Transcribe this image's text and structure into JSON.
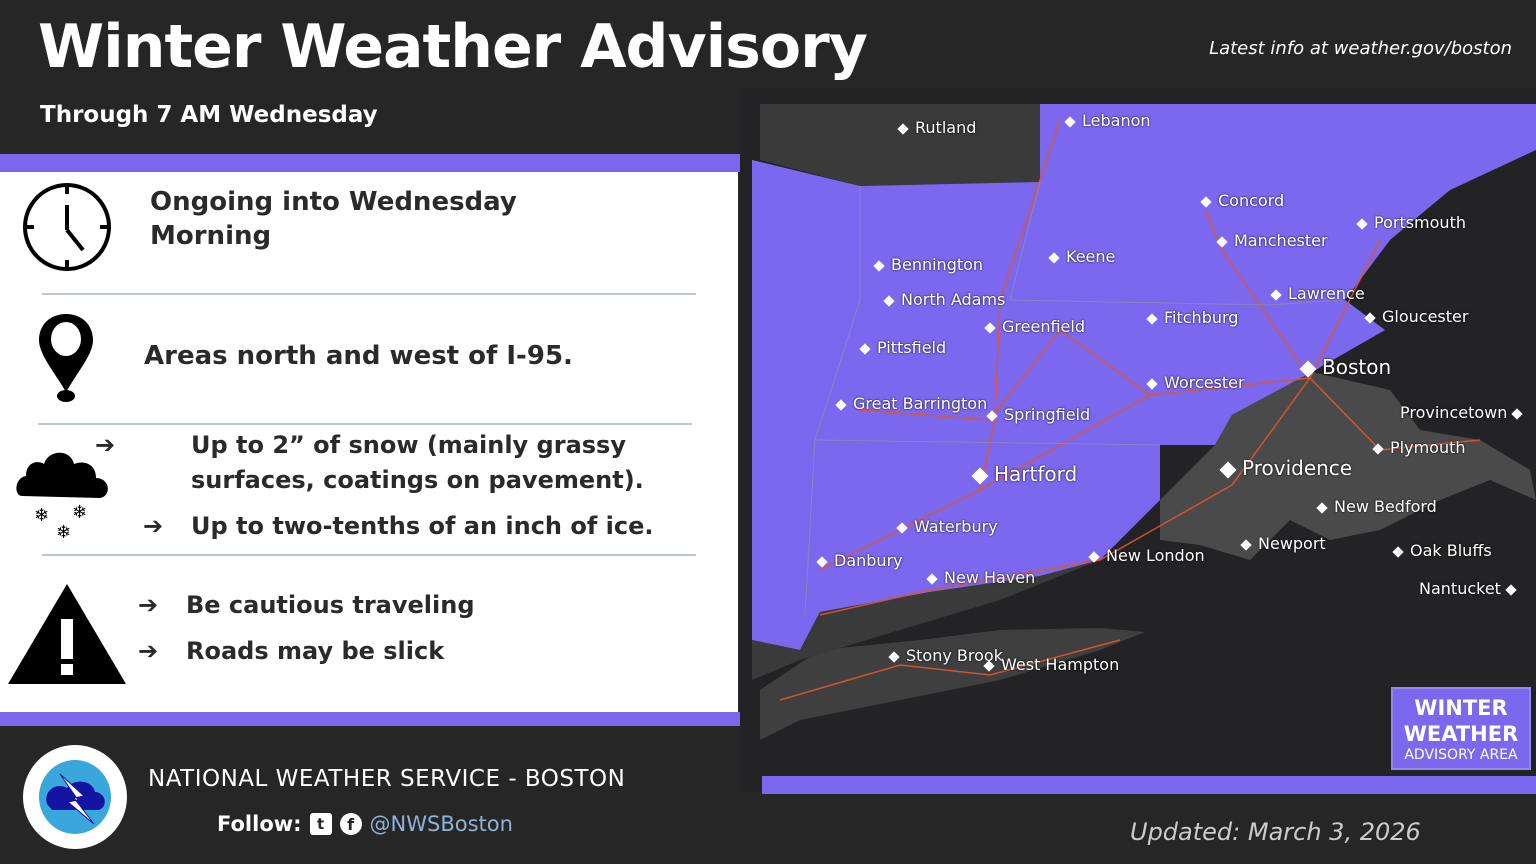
{
  "header": {
    "title": "Winter Weather Advisory",
    "subtitle": "Through 7 AM Wednesday",
    "latest_info": "Latest info at weather.gov/boston"
  },
  "rows": {
    "timing": {
      "icon": "clock-icon",
      "text": "Ongoing into Wednesday Morning"
    },
    "location": {
      "icon": "map-pin-icon",
      "text": "Areas north and west of I-95."
    },
    "impacts": {
      "icon": "snow-cloud-icon",
      "bullets": [
        "Up to 2” of snow (mainly grassy surfaces, coatings on pavement).",
        "Up to two-tenths of an inch of ice."
      ]
    },
    "actions": {
      "icon": "warning-icon",
      "bullets": [
        "Be cautious traveling",
        "Roads may be slick"
      ]
    }
  },
  "map": {
    "colors": {
      "advisory": "#7b68ee",
      "land": "#3a3a3a",
      "water": "#232325",
      "roads": "#e0562a"
    },
    "cities": [
      "Rutland",
      "Lebanon",
      "Concord",
      "Portsmouth",
      "Manchester",
      "Bennington",
      "Keene",
      "North Adams",
      "Lawrence",
      "Gloucester",
      "Greenfield",
      "Fitchburg",
      "Pittsfield",
      "Boston",
      "Worcester",
      "Provincetown",
      "Great Barrington",
      "Springfield",
      "Plymouth",
      "Hartford",
      "Providence",
      "New Bedford",
      "Waterbury",
      "Newport",
      "Oak Bluffs",
      "Danbury",
      "New London",
      "New Haven",
      "Nantucket",
      "Stony Brook",
      "West Hampton"
    ],
    "legend": {
      "line1": "WINTER",
      "line2": "WEATHER",
      "line3": "ADVISORY AREA"
    }
  },
  "footer": {
    "office": "NATIONAL WEATHER SERVICE - BOSTON",
    "follow_label": "Follow:",
    "handle": "@NWSBoston",
    "updated": "Updated:  March 3, 2026",
    "logo_text": "NATIONAL WEATHER SERVICE"
  }
}
